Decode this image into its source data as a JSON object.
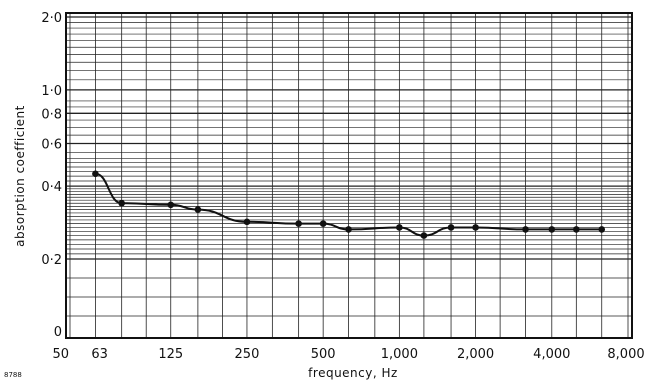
{
  "chart_data": {
    "type": "line",
    "title": "",
    "xlabel": "frequency, Hz",
    "ylabel": "absorption coefficient",
    "figure_number": "8788",
    "x_scale": "log",
    "y_scale": "log",
    "grid": true,
    "legend": "none",
    "line_color": "#111111",
    "y_ticks": [
      {
        "value": 0.2,
        "label": "0·2"
      },
      {
        "value": 0.4,
        "label": "0·4"
      },
      {
        "value": 0.6,
        "label": "0·6"
      },
      {
        "value": 0.8,
        "label": "0·8"
      },
      {
        "value": 1.0,
        "label": "1·0"
      },
      {
        "value": 2.0,
        "label": "2·0"
      }
    ],
    "y_zero_label": "0",
    "x_ticks": [
      {
        "value": 50,
        "label": "50"
      },
      {
        "value": 63,
        "label": "63"
      },
      {
        "value": 125,
        "label": "125"
      },
      {
        "value": 250,
        "label": "250"
      },
      {
        "value": 500,
        "label": "500"
      },
      {
        "value": 1000,
        "label": "1,000"
      },
      {
        "value": 2000,
        "label": "2,000"
      },
      {
        "value": 4000,
        "label": "4,000"
      },
      {
        "value": 8000,
        "label": "8,000"
      }
    ],
    "series": [
      {
        "x": [
          63,
          80,
          125,
          160,
          250,
          400,
          500,
          630,
          1000,
          1250,
          1600,
          2000,
          3150,
          4000,
          5000,
          6300
        ],
        "y": [
          0.45,
          0.34,
          0.335,
          0.32,
          0.285,
          0.28,
          0.28,
          0.265,
          0.27,
          0.25,
          0.27,
          0.27,
          0.265,
          0.265,
          0.265,
          0.265
        ]
      }
    ]
  }
}
